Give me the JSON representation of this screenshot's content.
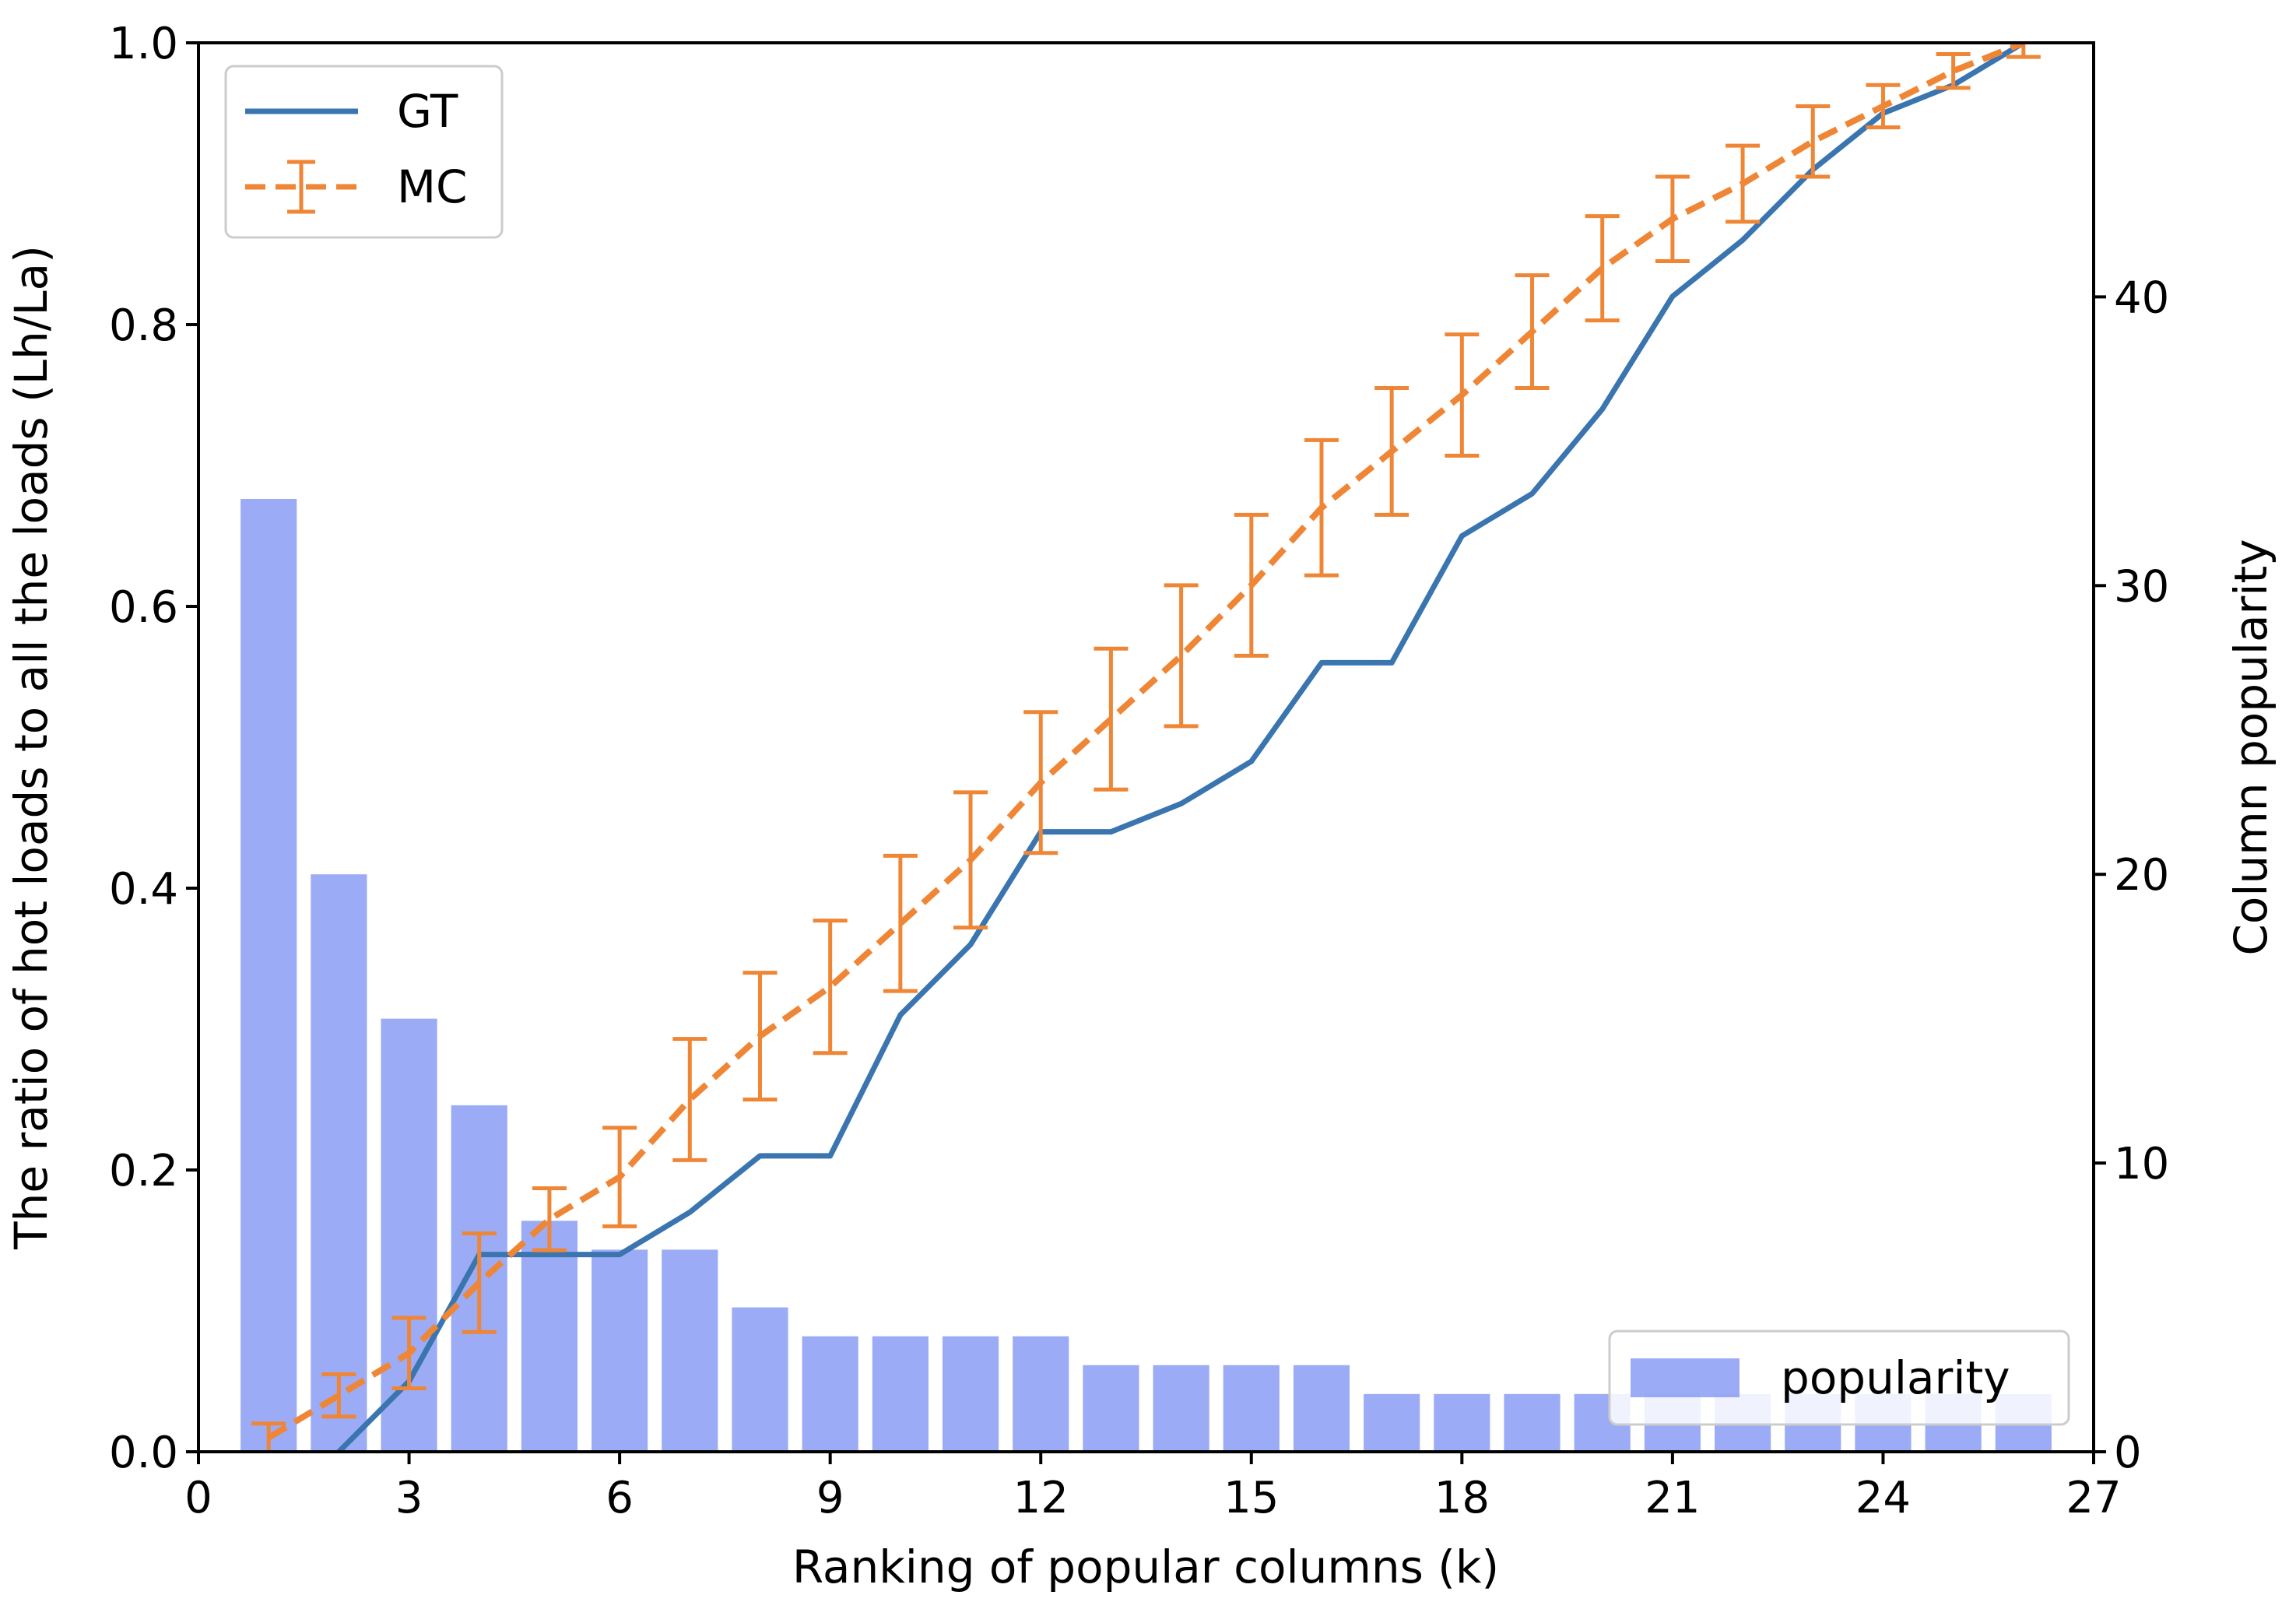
{
  "chart_data": {
    "type": "bar+line",
    "xlabel": "Ranking of popular columns (k)",
    "ylabel": "The ratio of hot loads to all the loads (Lh/La)",
    "y2label": "Column popularity",
    "xlim": [
      0,
      27
    ],
    "ylim": [
      0,
      1.0
    ],
    "y2lim": [
      0,
      48.8
    ],
    "xticks": [
      0,
      3,
      6,
      9,
      12,
      15,
      18,
      21,
      24,
      27
    ],
    "xtick_labels": [
      "0",
      "3",
      "6",
      "9",
      "12",
      "15",
      "18",
      "21",
      "24",
      "27"
    ],
    "yticks": [
      0.0,
      0.2,
      0.4,
      0.6,
      0.8,
      1.0
    ],
    "ytick_labels": [
      "0.0",
      "0.2",
      "0.4",
      "0.6",
      "0.8",
      "1.0"
    ],
    "y2ticks": [
      0,
      10,
      20,
      30,
      40
    ],
    "y2tick_labels": [
      "0",
      "10",
      "20",
      "30",
      "40"
    ],
    "grid": false,
    "x": [
      1,
      2,
      3,
      4,
      5,
      6,
      7,
      8,
      9,
      10,
      11,
      12,
      13,
      14,
      15,
      16,
      17,
      18,
      19,
      20,
      21,
      22,
      23,
      24,
      25,
      26
    ],
    "series": [
      {
        "name": "popularity",
        "kind": "bar",
        "axis": "right",
        "color": "#7b8ff2",
        "values": [
          33,
          20,
          15,
          12,
          8,
          7,
          7,
          5,
          4,
          4,
          4,
          4,
          3,
          3,
          3,
          3,
          2,
          2,
          2,
          2,
          2,
          2,
          2,
          2,
          2,
          2
        ]
      },
      {
        "name": "GT",
        "kind": "line",
        "axis": "left",
        "color": "#3a75b0",
        "values": [
          -0.08,
          0.0,
          0.05,
          0.14,
          0.14,
          0.14,
          0.17,
          0.21,
          0.21,
          0.31,
          0.36,
          0.44,
          0.44,
          0.46,
          0.49,
          0.56,
          0.56,
          0.65,
          0.68,
          0.74,
          0.82,
          0.86,
          0.91,
          0.95,
          0.97,
          1.0
        ]
      },
      {
        "name": "MC",
        "kind": "errorbar-line",
        "axis": "left",
        "color": "#ef8636",
        "values": [
          0.01,
          0.04,
          0.07,
          0.12,
          0.165,
          0.195,
          0.25,
          0.295,
          0.33,
          0.375,
          0.42,
          0.475,
          0.52,
          0.565,
          0.615,
          0.67,
          0.71,
          0.75,
          0.795,
          0.84,
          0.875,
          0.9,
          0.93,
          0.955,
          0.98,
          1.0
        ],
        "errors": [
          0.01,
          0.015,
          0.025,
          0.035,
          0.022,
          0.035,
          0.043,
          0.045,
          0.047,
          0.048,
          0.048,
          0.05,
          0.05,
          0.05,
          0.05,
          0.048,
          0.045,
          0.043,
          0.04,
          0.037,
          0.03,
          0.027,
          0.025,
          0.015,
          0.012,
          0.01
        ]
      }
    ],
    "legends": [
      {
        "placement": "top-left",
        "entries": [
          "GT",
          "MC"
        ]
      },
      {
        "placement": "bottom-right",
        "entries": [
          "popularity"
        ]
      }
    ]
  }
}
